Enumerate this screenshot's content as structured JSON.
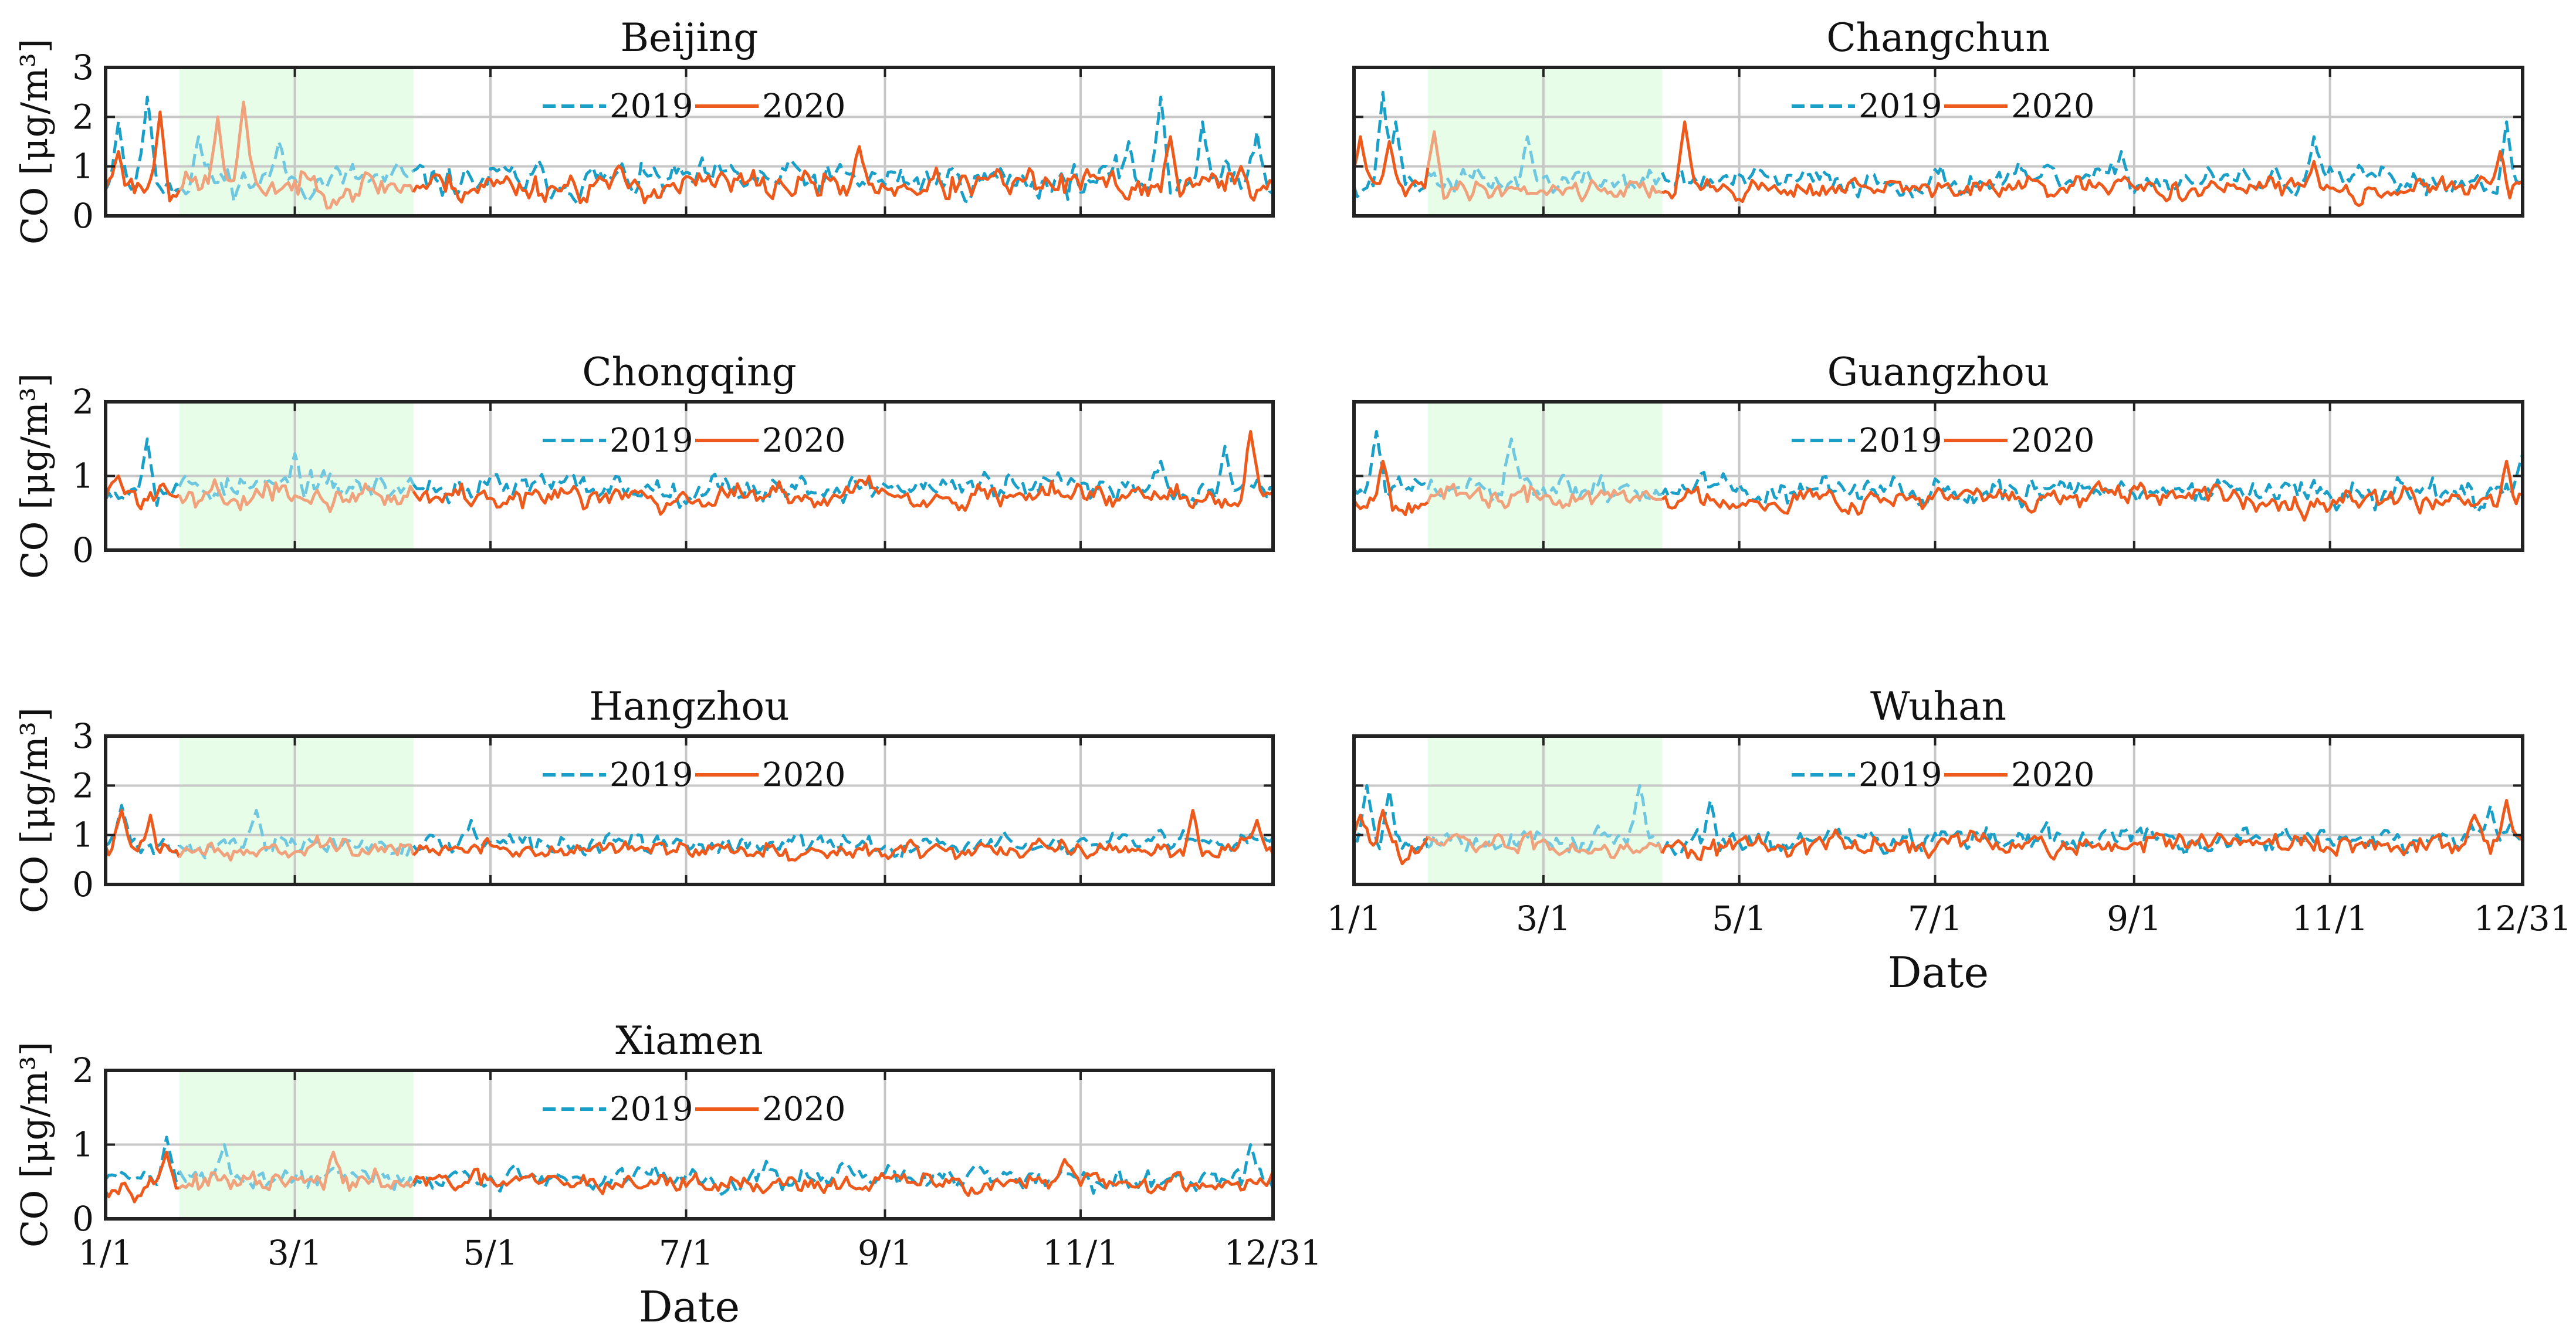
{
  "figure": {
    "lockdown_shading": "#e8fde8",
    "colors": {
      "s2019": "#1aa0c8",
      "s2020": "#ee5a1c",
      "s2019_shaded": "#70c8e0",
      "s2020_shaded": "#f0a27c",
      "grid": "#c8c8c8",
      "axis": "#222222"
    }
  },
  "chart_data": [
    {
      "type": "line",
      "title": "Beijing",
      "ylabel": "CO [μg/m³]",
      "ylim": [
        0,
        3
      ],
      "yticks": [
        "0",
        "1",
        "2",
        "3"
      ],
      "xlabel": "",
      "xlim": [
        1,
        365
      ],
      "xticks": [
        1,
        60,
        121,
        182,
        244,
        305,
        365
      ],
      "xticklabels": [],
      "shaded_region": {
        "x_start": 24,
        "x_end": 97
      },
      "legend": {
        "location": "top-center",
        "entries": [
          "2019",
          "2020"
        ]
      },
      "series": [
        {
          "name": "2019",
          "style": "dashed",
          "color": "#1aa0c8",
          "base": 0.72,
          "noise": 0.33,
          "seed": 11,
          "peaks": [
            [
              5,
              1.9
            ],
            [
              14,
              2.4
            ],
            [
              30,
              1.6
            ],
            [
              55,
              1.5
            ],
            [
              215,
              1.1
            ],
            [
              320,
              1.5
            ],
            [
              330,
              2.4
            ],
            [
              343,
              1.9
            ],
            [
              360,
              1.7
            ]
          ]
        },
        {
          "name": "2020",
          "style": "solid",
          "color": "#ee5a1c",
          "base": 0.62,
          "noise": 0.3,
          "seed": 23,
          "peaks": [
            [
              5,
              1.3
            ],
            [
              18,
              2.1
            ],
            [
              36,
              2.0
            ],
            [
              44,
              2.3
            ],
            [
              236,
              1.4
            ],
            [
              333,
              1.6
            ],
            [
              355,
              1.0
            ]
          ]
        }
      ]
    },
    {
      "type": "line",
      "title": "Changchun",
      "ylabel": "",
      "ylim": [
        0,
        3
      ],
      "yticks": [],
      "xlabel": "",
      "xlim": [
        1,
        365
      ],
      "xticks": [
        1,
        60,
        121,
        182,
        244,
        305,
        365
      ],
      "xticklabels": [],
      "shaded_region": {
        "x_start": 24,
        "x_end": 97
      },
      "legend": {
        "location": "top-center",
        "entries": [
          "2019",
          "2020"
        ]
      },
      "series": [
        {
          "name": "2019",
          "style": "dashed",
          "color": "#1aa0c8",
          "base": 0.7,
          "noise": 0.25,
          "seed": 37,
          "peaks": [
            [
              10,
              2.5
            ],
            [
              14,
              1.9
            ],
            [
              55,
              1.6
            ],
            [
              240,
              1.3
            ],
            [
              300,
              1.6
            ],
            [
              360,
              1.9
            ]
          ]
        },
        {
          "name": "2020",
          "style": "solid",
          "color": "#ee5a1c",
          "base": 0.55,
          "noise": 0.2,
          "seed": 41,
          "peaks": [
            [
              3,
              1.6
            ],
            [
              12,
              1.5
            ],
            [
              26,
              1.7
            ],
            [
              104,
              1.9
            ],
            [
              300,
              1.1
            ],
            [
              358,
              1.3
            ]
          ]
        }
      ]
    },
    {
      "type": "line",
      "title": "Chongqing",
      "ylabel": "CO [μg/m³]",
      "ylim": [
        0,
        2
      ],
      "yticks": [
        "0",
        "1",
        "2"
      ],
      "xlabel": "",
      "xlim": [
        1,
        365
      ],
      "xticks": [
        1,
        60,
        121,
        182,
        244,
        305,
        365
      ],
      "xticklabels": [],
      "shaded_region": {
        "x_start": 24,
        "x_end": 97
      },
      "legend": {
        "location": "top-center",
        "entries": [
          "2019",
          "2020"
        ]
      },
      "series": [
        {
          "name": "2019",
          "style": "dashed",
          "color": "#1aa0c8",
          "base": 0.85,
          "noise": 0.18,
          "seed": 53,
          "peaks": [
            [
              14,
              1.5
            ],
            [
              60,
              1.3
            ],
            [
              330,
              1.2
            ],
            [
              350,
              1.4
            ]
          ]
        },
        {
          "name": "2020",
          "style": "solid",
          "color": "#ee5a1c",
          "base": 0.75,
          "noise": 0.16,
          "seed": 59,
          "peaks": [
            [
              5,
              1.0
            ],
            [
              45,
              0.45
            ],
            [
              350,
              0.4
            ],
            [
              358,
              1.6
            ]
          ]
        }
      ]
    },
    {
      "type": "line",
      "title": "Guangzhou",
      "ylabel": "",
      "ylim": [
        0,
        2
      ],
      "yticks": [],
      "xlabel": "",
      "xlim": [
        1,
        365
      ],
      "xticks": [
        1,
        60,
        121,
        182,
        244,
        305,
        365
      ],
      "xticklabels": [],
      "shaded_region": {
        "x_start": 24,
        "x_end": 97
      },
      "legend": {
        "location": "top-center",
        "entries": [
          "2019",
          "2020"
        ]
      },
      "series": [
        {
          "name": "2019",
          "style": "dashed",
          "color": "#1aa0c8",
          "base": 0.8,
          "noise": 0.18,
          "seed": 61,
          "peaks": [
            [
              8,
              1.6
            ],
            [
              50,
              1.5
            ],
            [
              365,
              1.3
            ]
          ]
        },
        {
          "name": "2020",
          "style": "solid",
          "color": "#ee5a1c",
          "base": 0.7,
          "noise": 0.15,
          "seed": 67,
          "peaks": [
            [
              10,
              1.2
            ],
            [
              180,
              0.55
            ],
            [
              360,
              1.2
            ]
          ]
        }
      ]
    },
    {
      "type": "line",
      "title": "Hangzhou",
      "ylabel": "CO [μg/m³]",
      "ylim": [
        0,
        3
      ],
      "yticks": [
        "0",
        "1",
        "2",
        "3"
      ],
      "xlabel": "",
      "xlim": [
        1,
        365
      ],
      "xticks": [
        1,
        60,
        121,
        182,
        244,
        305,
        365
      ],
      "xticklabels": [],
      "shaded_region": {
        "x_start": 24,
        "x_end": 97
      },
      "legend": {
        "location": "top-center",
        "entries": [
          "2019",
          "2020"
        ]
      },
      "series": [
        {
          "name": "2019",
          "style": "dashed",
          "color": "#1aa0c8",
          "base": 0.8,
          "noise": 0.2,
          "seed": 71,
          "peaks": [
            [
              6,
              1.6
            ],
            [
              48,
              1.5
            ],
            [
              115,
              1.3
            ],
            [
              330,
              1.1
            ]
          ]
        },
        {
          "name": "2020",
          "style": "solid",
          "color": "#ee5a1c",
          "base": 0.7,
          "noise": 0.18,
          "seed": 73,
          "peaks": [
            [
              6,
              1.5
            ],
            [
              15,
              1.4
            ],
            [
              340,
              1.5
            ],
            [
              360,
              1.3
            ]
          ]
        }
      ]
    },
    {
      "type": "line",
      "title": "Wuhan",
      "ylabel": "",
      "ylim": [
        0,
        3
      ],
      "yticks": [],
      "xlabel": "Date",
      "xlim": [
        1,
        365
      ],
      "xticks": [
        1,
        60,
        121,
        182,
        244,
        305,
        365
      ],
      "xticklabels": [
        "1/1",
        "3/1",
        "5/1",
        "7/1",
        "9/1",
        "11/1",
        "12/31"
      ],
      "shaded_region": {
        "x_start": 24,
        "x_end": 97
      },
      "legend": {
        "location": "top-center",
        "entries": [
          "2019",
          "2020"
        ]
      },
      "series": [
        {
          "name": "2019",
          "style": "dashed",
          "color": "#1aa0c8",
          "base": 0.9,
          "noise": 0.25,
          "seed": 79,
          "peaks": [
            [
              5,
              2.0
            ],
            [
              12,
              1.9
            ],
            [
              90,
              2.0
            ],
            [
              112,
              1.7
            ],
            [
              355,
              1.6
            ]
          ]
        },
        {
          "name": "2020",
          "style": "solid",
          "color": "#ee5a1c",
          "base": 0.8,
          "noise": 0.22,
          "seed": 83,
          "peaks": [
            [
              3,
              1.4
            ],
            [
              10,
              1.5
            ],
            [
              350,
              1.4
            ],
            [
              360,
              1.7
            ]
          ]
        }
      ]
    },
    {
      "type": "line",
      "title": "Xiamen",
      "ylabel": "CO [μg/m³]",
      "ylim": [
        0,
        2
      ],
      "yticks": [
        "0",
        "1",
        "2"
      ],
      "xlabel": "Date",
      "xlim": [
        1,
        365
      ],
      "xticks": [
        1,
        60,
        121,
        182,
        244,
        305,
        365
      ],
      "xticklabels": [
        "1/1",
        "3/1",
        "5/1",
        "7/1",
        "9/1",
        "11/1",
        "12/31"
      ],
      "shaded_region": {
        "x_start": 24,
        "x_end": 97
      },
      "legend": {
        "location": "top-center",
        "entries": [
          "2019",
          "2020"
        ]
      },
      "series": [
        {
          "name": "2019",
          "style": "dashed",
          "color": "#1aa0c8",
          "base": 0.55,
          "noise": 0.15,
          "seed": 89,
          "peaks": [
            [
              20,
              1.1
            ],
            [
              38,
              1.0
            ],
            [
              358,
              1.0
            ]
          ]
        },
        {
          "name": "2020",
          "style": "solid",
          "color": "#ee5a1c",
          "base": 0.48,
          "noise": 0.13,
          "seed": 97,
          "peaks": [
            [
              20,
              0.9
            ],
            [
              72,
              0.9
            ],
            [
              300,
              0.8
            ]
          ]
        }
      ]
    }
  ]
}
